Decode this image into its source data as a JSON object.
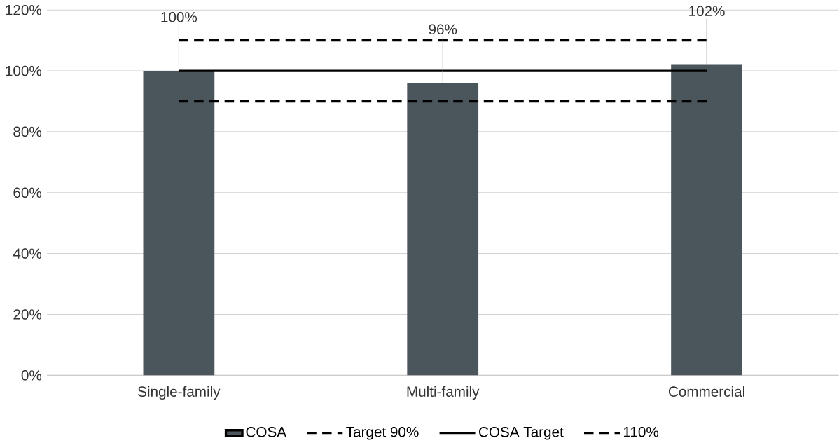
{
  "chart_data": {
    "type": "bar",
    "categories": [
      "Single-family",
      "Multi-family",
      "Commercial"
    ],
    "series": [
      {
        "name": "COSA",
        "color": "#4b555c",
        "values": [
          100,
          96,
          102
        ]
      },
      {
        "name": "Target 90%",
        "type": "line",
        "color": "#000000",
        "line_style": "dashed",
        "values": [
          90,
          90,
          90
        ]
      },
      {
        "name": "COSA Target",
        "type": "line",
        "color": "#000000",
        "line_style": "solid",
        "values": [
          100,
          100,
          100
        ]
      },
      {
        "name": "110%",
        "type": "line",
        "color": "#000000",
        "line_style": "dashed",
        "values": [
          110,
          110,
          110
        ]
      }
    ],
    "value_labels": [
      "100%",
      "96%",
      "102%"
    ],
    "ylim": [
      0,
      120
    ],
    "yticks": [
      {
        "value": 0,
        "label": "0%"
      },
      {
        "value": 20,
        "label": "20%"
      },
      {
        "value": 40,
        "label": "40%"
      },
      {
        "value": 60,
        "label": "60%"
      },
      {
        "value": 80,
        "label": "80%"
      },
      {
        "value": 100,
        "label": "100%"
      },
      {
        "value": 120,
        "label": "120%"
      }
    ],
    "grid": "y",
    "legend": "bottom",
    "marker": "none"
  }
}
